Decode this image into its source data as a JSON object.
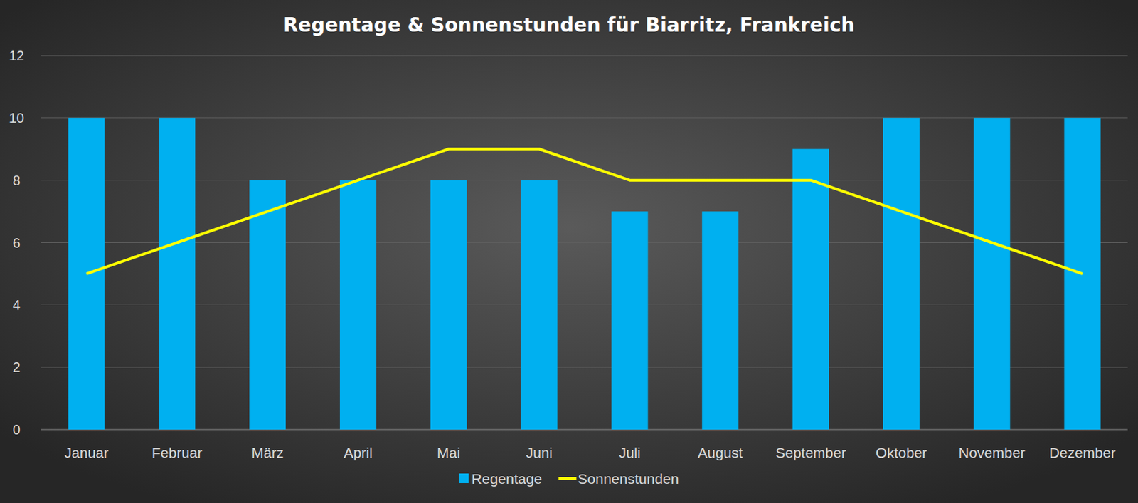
{
  "chart_data": {
    "type": "bar",
    "title": "Regentage & Sonnenstunden für Biarritz, Frankreich",
    "categories": [
      "Januar",
      "Februar",
      "März",
      "April",
      "Mai",
      "Juni",
      "Juli",
      "August",
      "September",
      "Oktober",
      "November",
      "Dezember"
    ],
    "series": [
      {
        "name": "Regentage",
        "type": "bar",
        "color": "#00b0f0",
        "values": [
          10,
          10,
          8,
          8,
          8,
          8,
          7,
          7,
          9,
          10,
          10,
          10
        ]
      },
      {
        "name": "Sonnenstunden",
        "type": "line",
        "color": "#ffff00",
        "values": [
          5,
          6,
          7,
          8,
          9,
          9,
          8,
          8,
          8,
          7,
          6,
          5
        ]
      }
    ],
    "ylim": [
      0,
      12
    ],
    "yticks": [
      0,
      2,
      4,
      6,
      8,
      10,
      12
    ],
    "grid": true,
    "legend": "bottom"
  }
}
